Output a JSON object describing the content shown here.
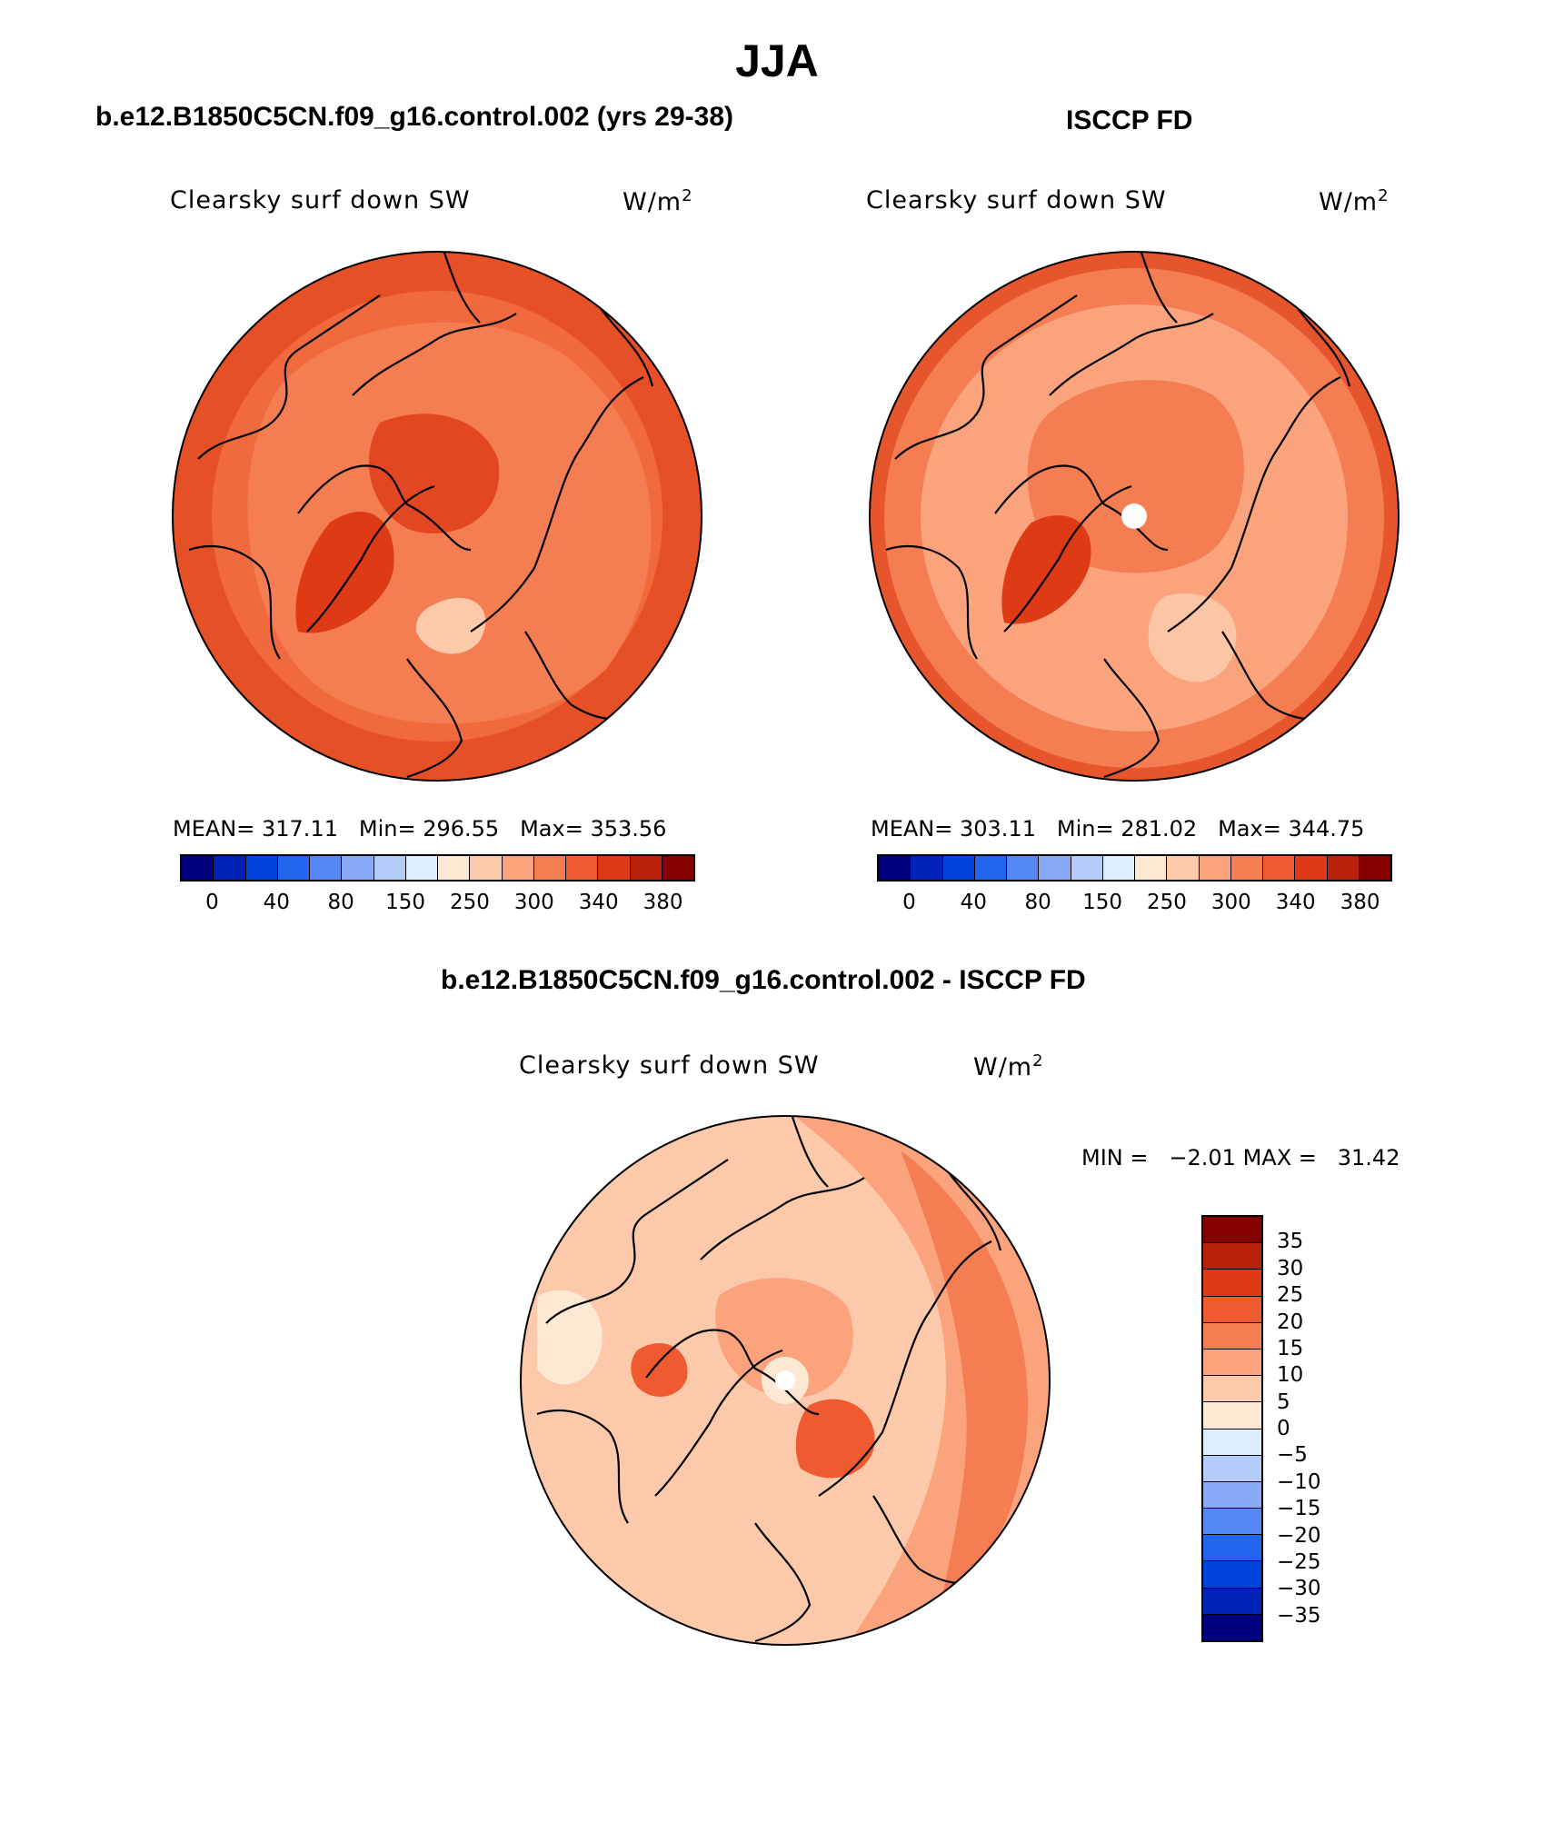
{
  "title": "JJA",
  "panels": [
    {
      "title": "b.e12.B1850C5CN.f09_g16.control.002 (yrs 29-38)",
      "variable": "Clearsky surf down SW",
      "units_base": "W/m",
      "units_exp": "2",
      "stats": {
        "mean_label": "MEAN=",
        "mean": "317.11",
        "min_label": "Min=",
        "min": "296.55",
        "max_label": "Max=",
        "max": "353.56"
      }
    },
    {
      "title": "ISCCP FD",
      "variable": "Clearsky surf down SW",
      "units_base": "W/m",
      "units_exp": "2",
      "stats": {
        "mean_label": "MEAN=",
        "mean": "303.11",
        "min_label": "Min=",
        "min": "281.02",
        "max_label": "Max=",
        "max": "344.75"
      }
    }
  ],
  "diff_panel": {
    "title": "b.e12.B1850C5CN.f09_g16.control.002 - ISCCP FD",
    "variable": "Clearsky surf down SW",
    "units_base": "W/m",
    "units_exp": "2",
    "min_label": "MIN =",
    "min": "−2.01",
    "max_label": "MAX =",
    "max": "31.42"
  },
  "abs_colorbar": {
    "colors": [
      "#00007f",
      "#0022b8",
      "#0044dd",
      "#2266f0",
      "#5588f5",
      "#88aaf7",
      "#b3ccfa",
      "#dceeff",
      "#fde8d4",
      "#fcc9aa",
      "#faa37d",
      "#f57d52",
      "#ef5a30",
      "#de3a15",
      "#b8200a",
      "#860000"
    ],
    "tick_labels": [
      "0",
      "40",
      "80",
      "150",
      "250",
      "300",
      "340",
      "380"
    ]
  },
  "diff_colorbar": {
    "colors": [
      "#860000",
      "#b8200a",
      "#de3a15",
      "#ef5a30",
      "#f57d52",
      "#faa37d",
      "#fcc9aa",
      "#fde8d4",
      "#dceeff",
      "#b3ccfa",
      "#88aaf7",
      "#5588f5",
      "#2266f0",
      "#0044dd",
      "#0022b8",
      "#00007f"
    ],
    "tick_labels": [
      "35",
      "30",
      "25",
      "20",
      "15",
      "10",
      "5",
      "0",
      "−5",
      "−10",
      "−15",
      "−20",
      "−25",
      "−30",
      "−35"
    ]
  },
  "map_colors": {
    "base_a": "#f06a3d",
    "mid_a": "#f57d52",
    "dark_a": "#de3a15",
    "light_a": "#fcc9aa",
    "base_b": "#faa37d",
    "mid_b": "#f57d52",
    "dark_b": "#de3a15",
    "pale_b": "#fcc9aa",
    "base_d": "#fcc9aa",
    "mid_d": "#faa37d",
    "dark_d": "#f57d52",
    "hot_d": "#ef5a30",
    "pale_d": "#fde8d4"
  }
}
